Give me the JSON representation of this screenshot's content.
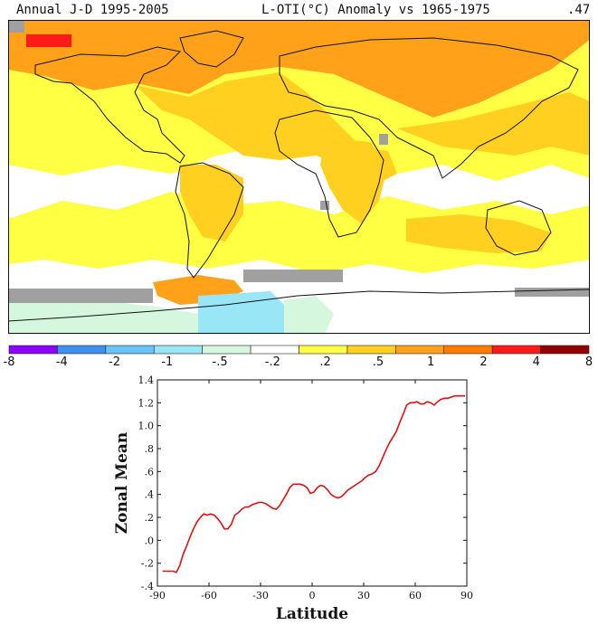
{
  "header": {
    "left_title": "Annual J-D 1995-2005",
    "center_title": "L-OTI(°C) Anomaly vs 1965-1975",
    "global_mean": ".47"
  },
  "colorbar": {
    "tick_labels": [
      "-8",
      "-4",
      "-2",
      "-1",
      "-.5",
      "-.2",
      ".2",
      ".5",
      "1",
      "2",
      "4",
      "8"
    ],
    "colors": [
      "#8b00ff",
      "#3f8fef",
      "#69c4f5",
      "#99e6f7",
      "#d5f7dd",
      "#ffffff",
      "#ffff44",
      "#ffd020",
      "#ffa21a",
      "#ff7a00",
      "#ff1a1a",
      "#900000"
    ]
  },
  "map": {
    "missing_color": "#a0a0a0",
    "ocean_color": "#ffffff"
  },
  "chart_data": {
    "type": "line",
    "title": "",
    "xlabel": "Latitude",
    "ylabel": "Zonal Mean",
    "xlim": [
      -90,
      90
    ],
    "ylim": [
      -0.4,
      1.4
    ],
    "x_ticks": [
      "-90",
      "-60",
      "-30",
      "0",
      "30",
      "60",
      "90"
    ],
    "y_ticks": [
      "-.4",
      "-.2",
      ".0",
      ".2",
      ".4",
      ".6",
      ".8",
      "1.0",
      "1.2",
      "1.4"
    ],
    "line_color": "#dd1111",
    "series": [
      {
        "x": [
          -87,
          -85,
          -83,
          -81,
          -79,
          -77,
          -75,
          -73,
          -71,
          -69,
          -67,
          -65,
          -63,
          -61,
          -59,
          -57,
          -55,
          -53,
          -51,
          -49,
          -47,
          -45,
          -43,
          -41,
          -39,
          -37,
          -35,
          -33,
          -31,
          -29,
          -27,
          -25,
          -23,
          -21,
          -19,
          -17,
          -15,
          -13,
          -11,
          -9,
          -7,
          -5,
          -3,
          -1,
          1,
          3,
          5,
          7,
          9,
          11,
          13,
          15,
          17,
          19,
          21,
          23,
          25,
          27,
          29,
          31,
          33,
          35,
          37,
          39,
          41,
          43,
          45,
          47,
          49,
          51,
          53,
          55,
          57,
          59,
          61,
          63,
          65,
          67,
          69,
          71,
          73,
          75,
          77,
          79,
          81,
          83,
          85,
          87,
          89
        ],
        "values": [
          -0.27,
          -0.27,
          -0.27,
          -0.27,
          -0.28,
          -0.22,
          -0.12,
          -0.05,
          0.03,
          0.1,
          0.16,
          0.2,
          0.23,
          0.22,
          0.23,
          0.22,
          0.19,
          0.15,
          0.1,
          0.1,
          0.14,
          0.22,
          0.24,
          0.27,
          0.29,
          0.29,
          0.31,
          0.32,
          0.33,
          0.33,
          0.32,
          0.3,
          0.28,
          0.27,
          0.3,
          0.35,
          0.4,
          0.46,
          0.49,
          0.49,
          0.49,
          0.48,
          0.46,
          0.41,
          0.42,
          0.46,
          0.48,
          0.47,
          0.44,
          0.4,
          0.38,
          0.37,
          0.38,
          0.41,
          0.44,
          0.46,
          0.48,
          0.5,
          0.52,
          0.55,
          0.57,
          0.58,
          0.6,
          0.65,
          0.72,
          0.79,
          0.85,
          0.9,
          0.95,
          1.03,
          1.1,
          1.18,
          1.2,
          1.2,
          1.21,
          1.19,
          1.19,
          1.21,
          1.2,
          1.18,
          1.21,
          1.23,
          1.24,
          1.24,
          1.25,
          1.26,
          1.26,
          1.26,
          1.26
        ]
      }
    ]
  }
}
